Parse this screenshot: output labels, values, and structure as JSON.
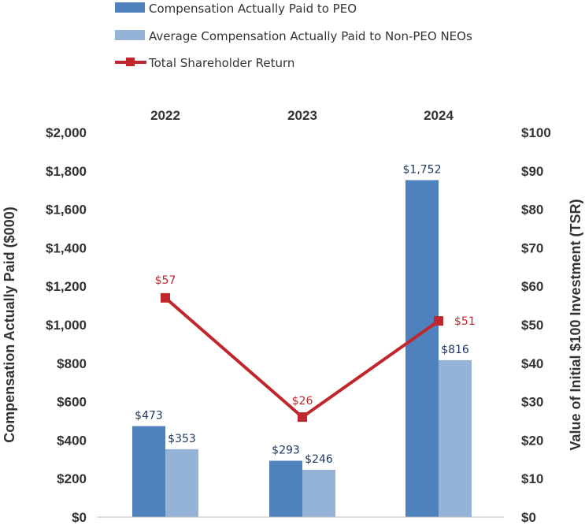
{
  "chart_data": {
    "type": "bar",
    "categories": [
      "2022",
      "2023",
      "2024"
    ],
    "series": [
      {
        "name": "Compensation Actually Paid to PEO",
        "values": [
          473,
          293,
          1752
        ],
        "labels": [
          "$473",
          "$293",
          "$1,752"
        ],
        "color": "#4f81bd",
        "label_color": "#1f3864"
      },
      {
        "name": "Average Compensation Actually Paid to Non-PEO NEOs",
        "values": [
          353,
          246,
          816
        ],
        "labels": [
          "$353",
          "$246",
          "$816"
        ],
        "color": "#95b3d7",
        "label_color": "#1f3864"
      }
    ],
    "line_series": {
      "name": "Total Shareholder Return",
      "values": [
        57,
        26,
        51
      ],
      "labels": [
        "$57",
        "$26",
        "$51"
      ],
      "color": "#c0272d",
      "axis": "right"
    },
    "left_axis": {
      "title": "Compensation Actually Paid ($000)",
      "range": [
        0,
        2000
      ],
      "ticks": [
        0,
        200,
        400,
        600,
        800,
        1000,
        1200,
        1400,
        1600,
        1800,
        2000
      ],
      "tick_labels": [
        "$0",
        "$200",
        "$400",
        "$600",
        "$800",
        "$1,000",
        "$1,200",
        "$1,400",
        "$1,600",
        "$1,800",
        "$2,000"
      ]
    },
    "right_axis": {
      "title": "Value of Initial $100 Investment (TSR)",
      "range": [
        0,
        100
      ],
      "ticks": [
        0,
        10,
        20,
        30,
        40,
        50,
        60,
        70,
        80,
        90,
        100
      ],
      "tick_labels": [
        "$0",
        "$10",
        "$20",
        "$30",
        "$40",
        "$50",
        "$60",
        "$70",
        "$80",
        "$90",
        "$100"
      ]
    },
    "legend_position": "top-left",
    "grid": false,
    "category_axis_position": "top"
  }
}
